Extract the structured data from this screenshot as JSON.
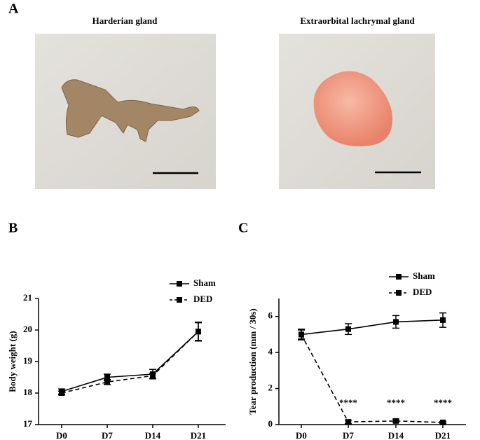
{
  "figure": {
    "panel_labels": [
      "A",
      "B",
      "C"
    ],
    "photos": [
      {
        "title": "Harderian gland"
      },
      {
        "title": "Extraorbital lachrymal gland"
      }
    ]
  },
  "chart_data": [
    {
      "type": "line",
      "ylabel": "Body weight (g)",
      "categories": [
        "D0",
        "D7",
        "D14",
        "D21"
      ],
      "ylim": [
        17,
        21
      ],
      "yticks": [
        17,
        18,
        19,
        20,
        21
      ],
      "legend": "upper right",
      "series": [
        {
          "name": "Sham",
          "color": "#000000",
          "linestyle": "solid",
          "values": [
            18.05,
            18.5,
            18.6,
            19.95
          ],
          "errors": [
            0.08,
            0.1,
            0.15,
            0.28
          ]
        },
        {
          "name": "DED",
          "color": "#000000",
          "linestyle": "dashed",
          "values": [
            18.0,
            18.35,
            18.55,
            19.95
          ],
          "errors": [
            0.06,
            0.08,
            0.08,
            0.3
          ]
        }
      ]
    },
    {
      "type": "line",
      "ylabel": "Tear production (mm / 30s)",
      "categories": [
        "D0",
        "D7",
        "D14",
        "D21"
      ],
      "ylim": [
        0,
        7
      ],
      "yticks": [
        0,
        2,
        4,
        6
      ],
      "legend": "upper right",
      "annotations": [
        "****",
        "****",
        "****"
      ],
      "series": [
        {
          "name": "Sham",
          "color": "#000000",
          "linestyle": "solid",
          "values": [
            5.0,
            5.3,
            5.7,
            5.8
          ],
          "errors": [
            0.3,
            0.3,
            0.35,
            0.4
          ]
        },
        {
          "name": "DED",
          "color": "#000000",
          "linestyle": "dashed",
          "values": [
            5.0,
            0.15,
            0.2,
            0.12
          ],
          "errors": [
            0.25,
            0.1,
            0.1,
            0.05
          ]
        }
      ]
    }
  ]
}
